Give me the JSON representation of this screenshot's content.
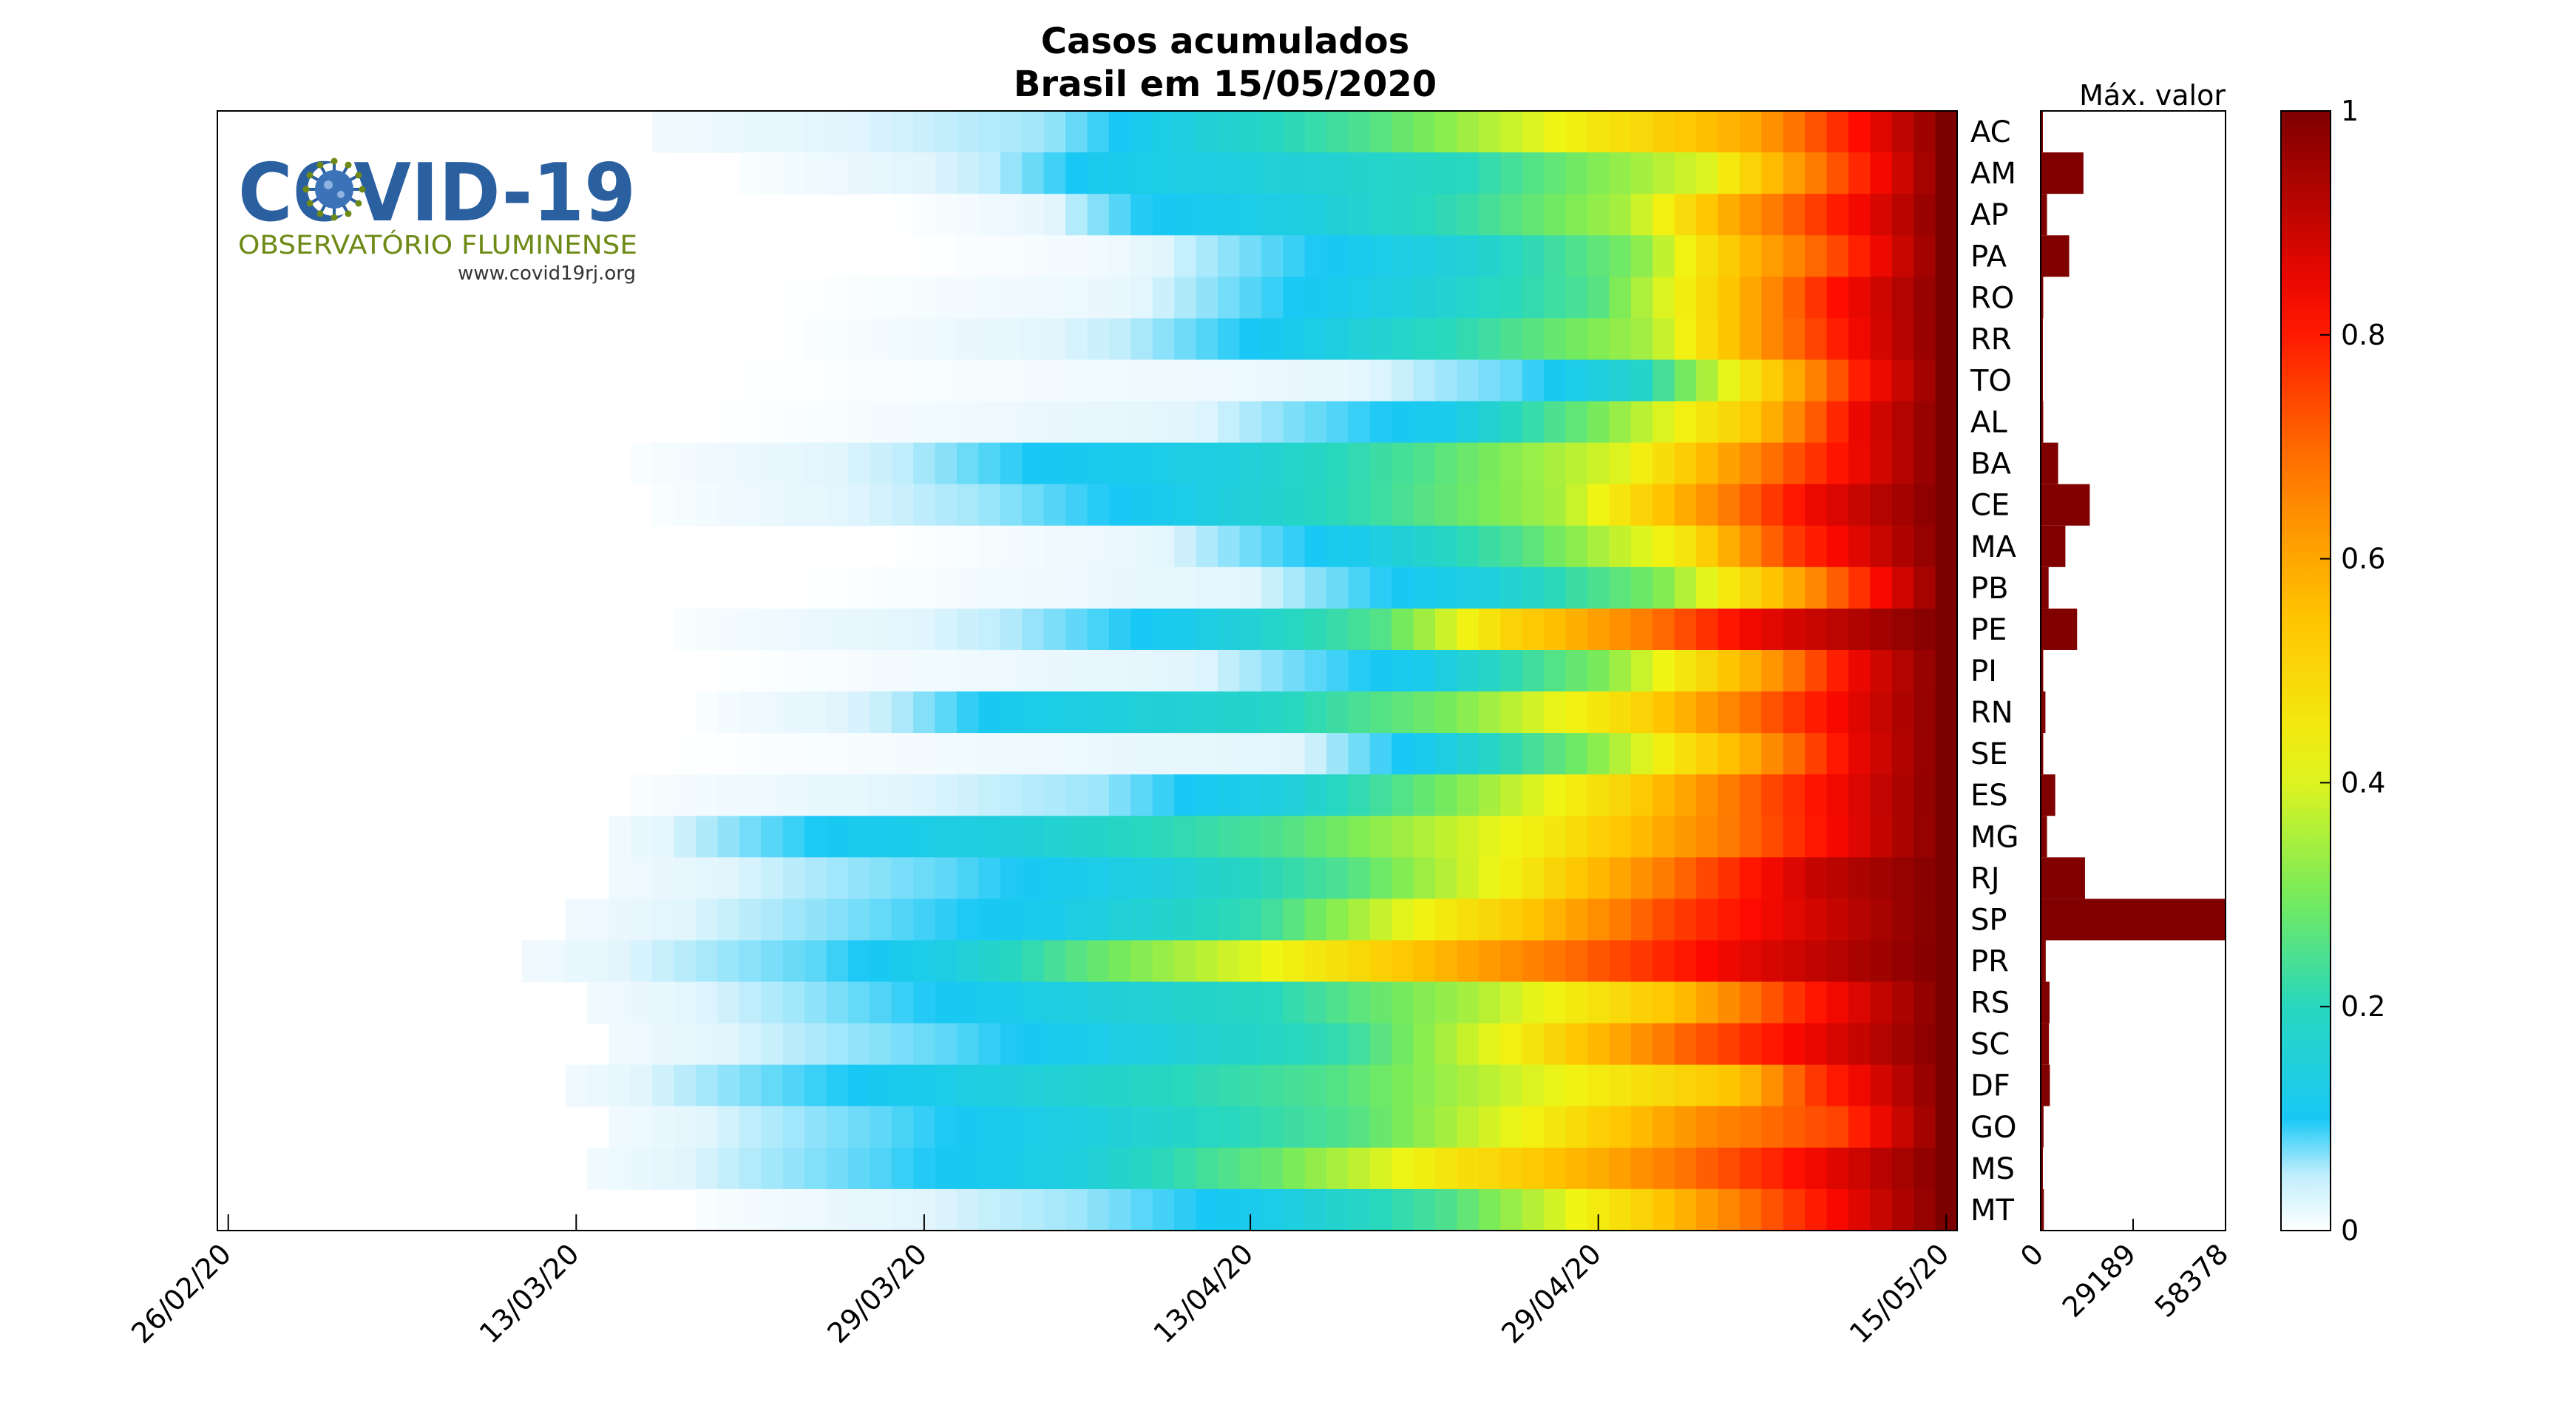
{
  "chart_data": {
    "type": "heatmap",
    "title": "Casos acumulados",
    "subtitle": "Brasil em 15/05/2020",
    "x_start": "26/02/20",
    "x_end": "15/05/20",
    "x_tick_labels": [
      "26/02/20",
      "13/03/20",
      "29/03/20",
      "13/04/20",
      "29/04/20",
      "15/05/20"
    ],
    "rows": [
      "AC",
      "AM",
      "AP",
      "PA",
      "RO",
      "RR",
      "TO",
      "AL",
      "BA",
      "CE",
      "MA",
      "PB",
      "PE",
      "PI",
      "RN",
      "SE",
      "ES",
      "MG",
      "RJ",
      "SP",
      "PR",
      "RS",
      "SC",
      "DF",
      "GO",
      "MS",
      "MT"
    ],
    "row_profiles": [
      {
        "start": "17/03/20",
        "knots": [
          [
            0,
            0.02
          ],
          [
            0.3,
            0.06
          ],
          [
            0.55,
            0.25
          ],
          [
            0.85,
            0.6
          ],
          [
            1,
            1
          ]
        ]
      },
      {
        "start": "21/03/20",
        "knots": [
          [
            0,
            0.01
          ],
          [
            0.2,
            0.05
          ],
          [
            0.3,
            0.12
          ],
          [
            0.4,
            0.14
          ],
          [
            0.6,
            0.2
          ],
          [
            0.8,
            0.4
          ],
          [
            0.9,
            0.7
          ],
          [
            1,
            1
          ]
        ]
      },
      {
        "start": "27/03/20",
        "knots": [
          [
            0,
            0.0
          ],
          [
            0.15,
            0.03
          ],
          [
            0.25,
            0.1
          ],
          [
            0.4,
            0.14
          ],
          [
            0.55,
            0.22
          ],
          [
            0.7,
            0.35
          ],
          [
            0.8,
            0.6
          ],
          [
            1,
            1
          ]
        ]
      },
      {
        "start": "28/03/20",
        "knots": [
          [
            0,
            0.0
          ],
          [
            0.2,
            0.02
          ],
          [
            0.45,
            0.12
          ],
          [
            0.55,
            0.16
          ],
          [
            0.7,
            0.3
          ],
          [
            0.8,
            0.55
          ],
          [
            0.9,
            0.75
          ],
          [
            1,
            1
          ]
        ]
      },
      {
        "start": "22/03/20",
        "knots": [
          [
            0,
            0.0
          ],
          [
            0.3,
            0.03
          ],
          [
            0.55,
            0.15
          ],
          [
            0.7,
            0.25
          ],
          [
            0.8,
            0.5
          ],
          [
            0.9,
            0.8
          ],
          [
            1,
            1
          ]
        ]
      },
      {
        "start": "22/03/20",
        "knots": [
          [
            0,
            0.0
          ],
          [
            0.3,
            0.05
          ],
          [
            0.45,
            0.12
          ],
          [
            0.6,
            0.22
          ],
          [
            0.75,
            0.35
          ],
          [
            0.85,
            0.65
          ],
          [
            0.93,
            0.85
          ],
          [
            1,
            1
          ]
        ]
      },
      {
        "start": "20/03/20",
        "knots": [
          [
            0,
            0.0
          ],
          [
            0.5,
            0.03
          ],
          [
            0.65,
            0.08
          ],
          [
            0.75,
            0.18
          ],
          [
            0.85,
            0.5
          ],
          [
            0.93,
            0.8
          ],
          [
            1,
            1
          ]
        ]
      },
      {
        "start": "19/03/20",
        "knots": [
          [
            0,
            0.0
          ],
          [
            0.4,
            0.04
          ],
          [
            0.6,
            0.12
          ],
          [
            0.72,
            0.3
          ],
          [
            0.85,
            0.55
          ],
          [
            0.93,
            0.85
          ],
          [
            1,
            1
          ]
        ]
      },
      {
        "start": "16/03/20",
        "knots": [
          [
            0,
            0.01
          ],
          [
            0.2,
            0.05
          ],
          [
            0.3,
            0.1
          ],
          [
            0.45,
            0.14
          ],
          [
            0.6,
            0.25
          ],
          [
            0.75,
            0.4
          ],
          [
            0.87,
            0.7
          ],
          [
            1,
            1
          ]
        ]
      },
      {
        "start": "17/03/20",
        "knots": [
          [
            0,
            0.01
          ],
          [
            0.25,
            0.06
          ],
          [
            0.4,
            0.12
          ],
          [
            0.55,
            0.22
          ],
          [
            0.7,
            0.35
          ],
          [
            0.8,
            0.6
          ],
          [
            0.9,
            0.85
          ],
          [
            1,
            1
          ]
        ]
      },
      {
        "start": "27/03/20",
        "knots": [
          [
            0,
            0.0
          ],
          [
            0.25,
            0.03
          ],
          [
            0.45,
            0.12
          ],
          [
            0.6,
            0.25
          ],
          [
            0.75,
            0.45
          ],
          [
            0.85,
            0.75
          ],
          [
            1,
            1
          ]
        ]
      },
      {
        "start": "23/03/20",
        "knots": [
          [
            0,
            0.0
          ],
          [
            0.4,
            0.04
          ],
          [
            0.6,
            0.14
          ],
          [
            0.75,
            0.3
          ],
          [
            0.87,
            0.6
          ],
          [
            0.95,
            0.85
          ],
          [
            1,
            1
          ]
        ]
      },
      {
        "start": "18/03/20",
        "knots": [
          [
            0,
            0.01
          ],
          [
            0.25,
            0.05
          ],
          [
            0.4,
            0.12
          ],
          [
            0.55,
            0.25
          ],
          [
            0.65,
            0.5
          ],
          [
            0.75,
            0.65
          ],
          [
            0.85,
            0.85
          ],
          [
            1,
            1
          ]
        ]
      },
      {
        "start": "19/03/20",
        "knots": [
          [
            0,
            0.0
          ],
          [
            0.4,
            0.04
          ],
          [
            0.58,
            0.12
          ],
          [
            0.72,
            0.3
          ],
          [
            0.85,
            0.6
          ],
          [
            0.93,
            0.85
          ],
          [
            1,
            1
          ]
        ]
      },
      {
        "start": "19/03/20",
        "knots": [
          [
            0,
            0.01
          ],
          [
            0.15,
            0.05
          ],
          [
            0.25,
            0.12
          ],
          [
            0.45,
            0.18
          ],
          [
            0.6,
            0.3
          ],
          [
            0.75,
            0.5
          ],
          [
            0.87,
            0.75
          ],
          [
            1,
            1
          ]
        ]
      },
      {
        "start": "17/03/20",
        "knots": [
          [
            0,
            0.0
          ],
          [
            0.5,
            0.04
          ],
          [
            0.6,
            0.12
          ],
          [
            0.72,
            0.3
          ],
          [
            0.85,
            0.6
          ],
          [
            0.93,
            0.85
          ],
          [
            1,
            1
          ]
        ]
      },
      {
        "start": "16/03/20",
        "knots": [
          [
            0,
            0.01
          ],
          [
            0.35,
            0.06
          ],
          [
            0.5,
            0.15
          ],
          [
            0.62,
            0.3
          ],
          [
            0.75,
            0.5
          ],
          [
            0.87,
            0.75
          ],
          [
            1,
            1
          ]
        ]
      },
      {
        "start": "15/03/20",
        "knots": [
          [
            0,
            0.02
          ],
          [
            0.15,
            0.1
          ],
          [
            0.3,
            0.15
          ],
          [
            0.5,
            0.25
          ],
          [
            0.7,
            0.45
          ],
          [
            0.85,
            0.7
          ],
          [
            1,
            1
          ]
        ]
      },
      {
        "start": "15/03/20",
        "knots": [
          [
            0,
            0.02
          ],
          [
            0.25,
            0.08
          ],
          [
            0.4,
            0.14
          ],
          [
            0.55,
            0.25
          ],
          [
            0.68,
            0.45
          ],
          [
            0.8,
            0.7
          ],
          [
            0.9,
            0.9
          ],
          [
            1,
            1
          ]
        ]
      },
      {
        "start": "13/03/20",
        "knots": [
          [
            0,
            0.02
          ],
          [
            0.2,
            0.07
          ],
          [
            0.35,
            0.12
          ],
          [
            0.5,
            0.22
          ],
          [
            0.6,
            0.4
          ],
          [
            0.7,
            0.55
          ],
          [
            0.8,
            0.75
          ],
          [
            1,
            1
          ]
        ]
      },
      {
        "start": "11/03/20",
        "knots": [
          [
            0,
            0.02
          ],
          [
            0.2,
            0.08
          ],
          [
            0.3,
            0.14
          ],
          [
            0.4,
            0.28
          ],
          [
            0.55,
            0.45
          ],
          [
            0.7,
            0.65
          ],
          [
            0.85,
            0.85
          ],
          [
            1,
            1
          ]
        ]
      },
      {
        "start": "14/03/20",
        "knots": [
          [
            0,
            0.02
          ],
          [
            0.15,
            0.06
          ],
          [
            0.3,
            0.12
          ],
          [
            0.5,
            0.2
          ],
          [
            0.65,
            0.35
          ],
          [
            0.8,
            0.55
          ],
          [
            0.9,
            0.8
          ],
          [
            1,
            1
          ]
        ]
      },
      {
        "start": "15/03/20",
        "knots": [
          [
            0,
            0.02
          ],
          [
            0.25,
            0.08
          ],
          [
            0.4,
            0.14
          ],
          [
            0.55,
            0.22
          ],
          [
            0.68,
            0.45
          ],
          [
            0.8,
            0.7
          ],
          [
            0.9,
            0.85
          ],
          [
            1,
            1
          ]
        ]
      },
      {
        "start": "13/03/20",
        "knots": [
          [
            0,
            0.02
          ],
          [
            0.2,
            0.1
          ],
          [
            0.35,
            0.16
          ],
          [
            0.55,
            0.25
          ],
          [
            0.7,
            0.4
          ],
          [
            0.85,
            0.55
          ],
          [
            0.9,
            0.75
          ],
          [
            1,
            1
          ]
        ]
      },
      {
        "start": "15/03/20",
        "knots": [
          [
            0,
            0.02
          ],
          [
            0.2,
            0.08
          ],
          [
            0.35,
            0.14
          ],
          [
            0.55,
            0.25
          ],
          [
            0.7,
            0.45
          ],
          [
            0.82,
            0.65
          ],
          [
            0.92,
            0.75
          ],
          [
            1,
            1
          ]
        ]
      },
      {
        "start": "14/03/20",
        "knots": [
          [
            0,
            0.02
          ],
          [
            0.2,
            0.08
          ],
          [
            0.35,
            0.14
          ],
          [
            0.5,
            0.28
          ],
          [
            0.62,
            0.45
          ],
          [
            0.75,
            0.6
          ],
          [
            0.88,
            0.8
          ],
          [
            1,
            1
          ]
        ]
      },
      {
        "start": "19/03/20",
        "knots": [
          [
            0,
            0.01
          ],
          [
            0.3,
            0.06
          ],
          [
            0.45,
            0.12
          ],
          [
            0.6,
            0.25
          ],
          [
            0.75,
            0.5
          ],
          [
            0.87,
            0.75
          ],
          [
            1,
            1
          ]
        ]
      }
    ],
    "max_values": [
      400,
      13500,
      2000,
      9000,
      800,
      700,
      500,
      800,
      5500,
      15500,
      7800,
      2500,
      11500,
      800,
      1500,
      800,
      4600,
      2000,
      14000,
      58378,
      1600,
      2800,
      2600,
      2900,
      900,
      500,
      1000
    ],
    "max_axis": {
      "label": "Máx. valor",
      "range": [
        0,
        58378
      ],
      "tick_labels": [
        "0",
        "29189",
        "58378"
      ]
    },
    "colorbar": {
      "range": [
        0,
        1
      ],
      "tick_labels": [
        "0",
        "0.2",
        "0.4",
        "0.6",
        "0.8",
        "1"
      ],
      "colormap": "jet-white"
    }
  },
  "logo": {
    "main": "COVID-19",
    "sub": "OBSERVATÓRIO FLUMINENSE",
    "url": "www.covid19rj.org"
  },
  "colors": {
    "bar_color": "#800000",
    "logo_blue": "#2a5fa0",
    "logo_green": "#6e8a16"
  }
}
